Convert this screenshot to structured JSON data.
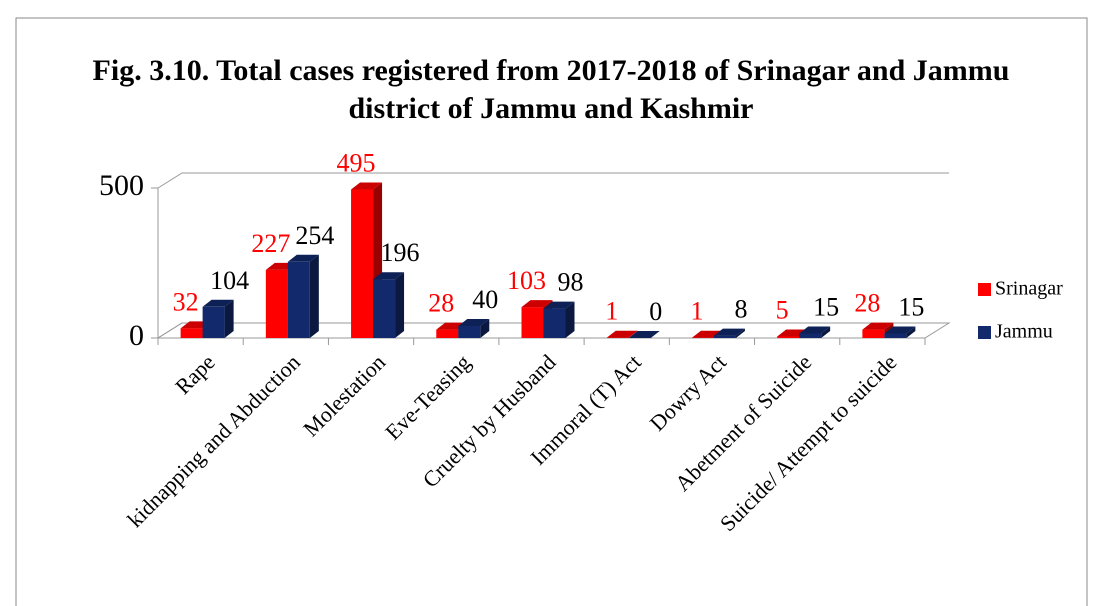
{
  "chart_data": {
    "type": "bar3d",
    "title": "Fig. 3.10. Total cases registered from 2017-2018 of Srinagar and Jammu district of Jammu and Kashmir",
    "categories": [
      "Rape",
      "kidnapping and Abduction",
      "Molestation",
      "Eve-Teasing",
      "Cruelty by Husband",
      "Immoral (T) Act",
      "Dowry Act",
      "Abetment of Suicide",
      "Suicide/ Attempt to suicide"
    ],
    "series": [
      {
        "name": "Srinagar",
        "color": "#ff0000",
        "label_color": "#ff0000",
        "values": [
          32,
          227,
          495,
          28,
          103,
          1,
          1,
          5,
          28
        ]
      },
      {
        "name": "Jammu",
        "color": "#12296b",
        "label_color": "#000000",
        "values": [
          104,
          254,
          196,
          40,
          98,
          0,
          8,
          15,
          15
        ]
      }
    ],
    "ylim": [
      0,
      500
    ],
    "yticks": [
      0,
      500
    ],
    "grid": true,
    "legend": "right"
  }
}
